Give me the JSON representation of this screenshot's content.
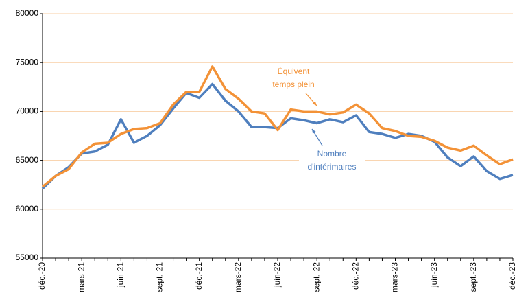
{
  "chart_data": {
    "type": "line",
    "categories": [
      "déc.-20",
      null,
      null,
      "mars-21",
      null,
      null,
      "juin-21",
      null,
      null,
      "sept.-21",
      null,
      null,
      "déc.-21",
      null,
      null,
      "mars-22",
      null,
      null,
      "juin-22",
      null,
      null,
      "sept.-22",
      null,
      null,
      "déc.-22",
      null,
      null,
      "mars-23",
      null,
      null,
      "juin-23",
      null,
      null,
      "sept.-23",
      null,
      null,
      "déc.-23"
    ],
    "series": [
      {
        "name": "Nombre d'intérimaires",
        "color": "#4f7fbe",
        "values": [
          62100,
          63400,
          64300,
          65700,
          65900,
          66600,
          69200,
          66800,
          67500,
          68600,
          70300,
          71900,
          71400,
          72800,
          71100,
          70000,
          68400,
          68400,
          68300,
          69300,
          69100,
          68800,
          69200,
          68900,
          69600,
          67900,
          67700,
          67300,
          67700,
          67500,
          66900,
          65300,
          64400,
          65400,
          63900,
          63100,
          63500
        ]
      },
      {
        "name": "Équivent temps plein",
        "color": "#f39237",
        "values": [
          62300,
          63400,
          64100,
          65800,
          66700,
          66800,
          67700,
          68200,
          68300,
          68800,
          70700,
          72000,
          72000,
          74600,
          72300,
          71300,
          70000,
          69800,
          68100,
          70200,
          70000,
          70000,
          69700,
          69900,
          70700,
          69800,
          68300,
          68000,
          67500,
          67400,
          67000,
          66300,
          66000,
          66500,
          65500,
          64600,
          65100
        ]
      }
    ],
    "annotations": [
      {
        "lines": [
          "Équivent",
          "temps plein"
        ],
        "color": "#f39237"
      },
      {
        "lines": [
          "Nombre",
          "d'intérimaires"
        ],
        "color": "#4f7fbe"
      }
    ],
    "ylim": [
      55000,
      80000
    ],
    "yticks": [
      55000,
      60000,
      65000,
      70000,
      75000,
      80000
    ],
    "grid": true
  }
}
